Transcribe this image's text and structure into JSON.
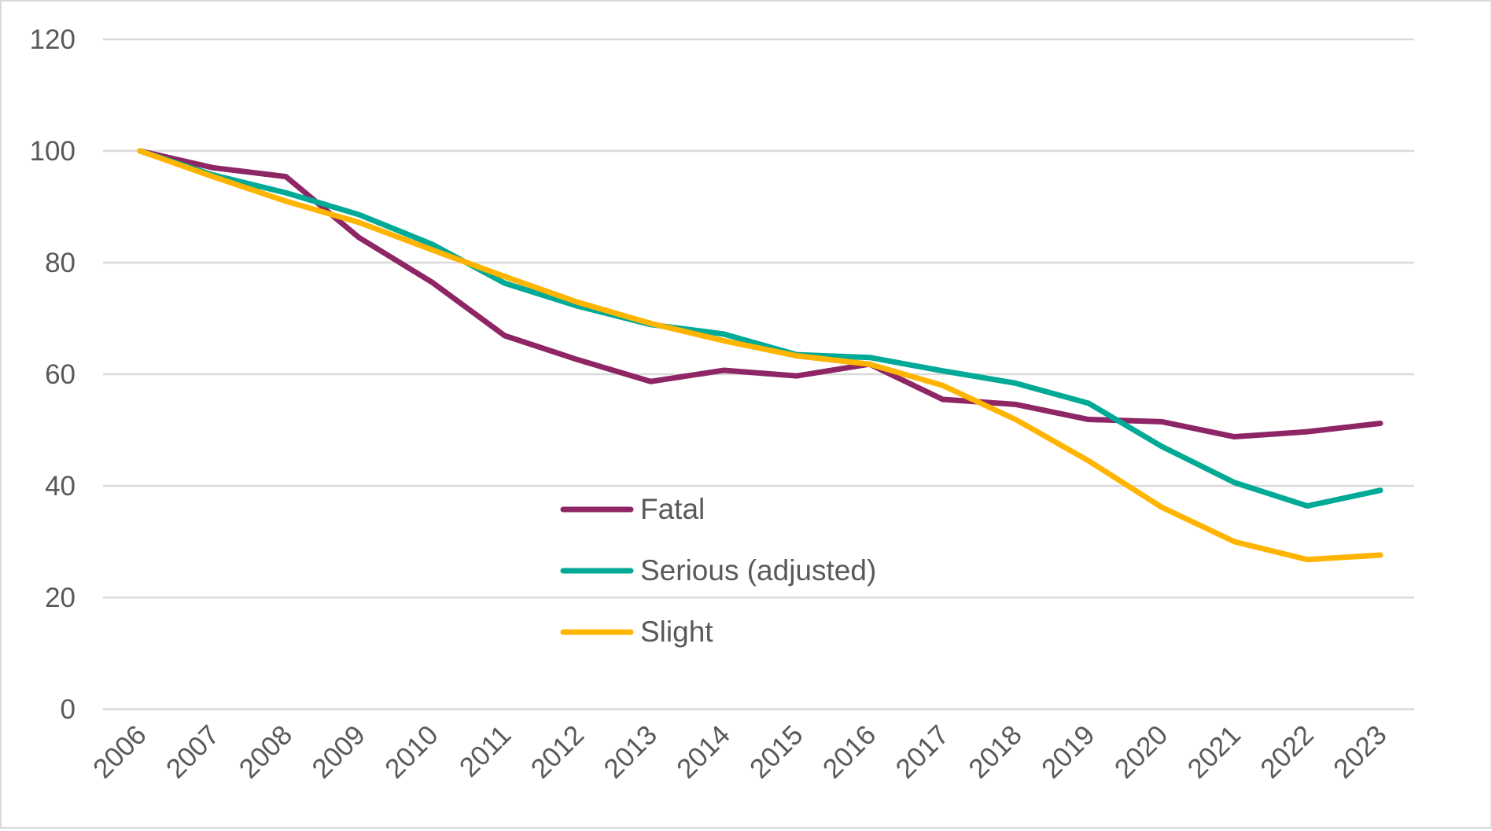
{
  "chart_data": {
    "type": "line",
    "title": "",
    "xlabel": "",
    "ylabel": "",
    "ylim": [
      0,
      120
    ],
    "yticks": [
      0,
      20,
      40,
      60,
      80,
      100,
      120
    ],
    "grid": true,
    "legend_position": "center-left inside plot",
    "categories": [
      "2006",
      "2007",
      "2008",
      "2009",
      "2010",
      "2011",
      "2012",
      "2013",
      "2014",
      "2015",
      "2016",
      "2017",
      "2018",
      "2019",
      "2020",
      "2021",
      "2022",
      "2023"
    ],
    "series": [
      {
        "name": "Fatal",
        "color": "#8E2565",
        "values": [
          100,
          97,
          95.4,
          84.5,
          76.5,
          66.9,
          62.6,
          58.7,
          60.7,
          59.7,
          61.8,
          55.5,
          54.6,
          51.9,
          51.5,
          48.8,
          49.7,
          51.2
        ]
      },
      {
        "name": "Serious (adjusted)",
        "color": "#00AA96",
        "values": [
          100,
          95.7,
          92.5,
          88.6,
          83.3,
          76.3,
          72.2,
          68.9,
          67.2,
          63.5,
          63,
          60.6,
          58.4,
          54.8,
          47.1,
          40.6,
          36.4,
          39.2
        ]
      },
      {
        "name": "Slight",
        "color": "#FFB400",
        "values": [
          100,
          95.4,
          91,
          87.2,
          82.3,
          77.5,
          72.9,
          69.1,
          66,
          63.3,
          61.8,
          58,
          51.9,
          44.5,
          36.2,
          30,
          26.8,
          27.6
        ]
      }
    ]
  }
}
